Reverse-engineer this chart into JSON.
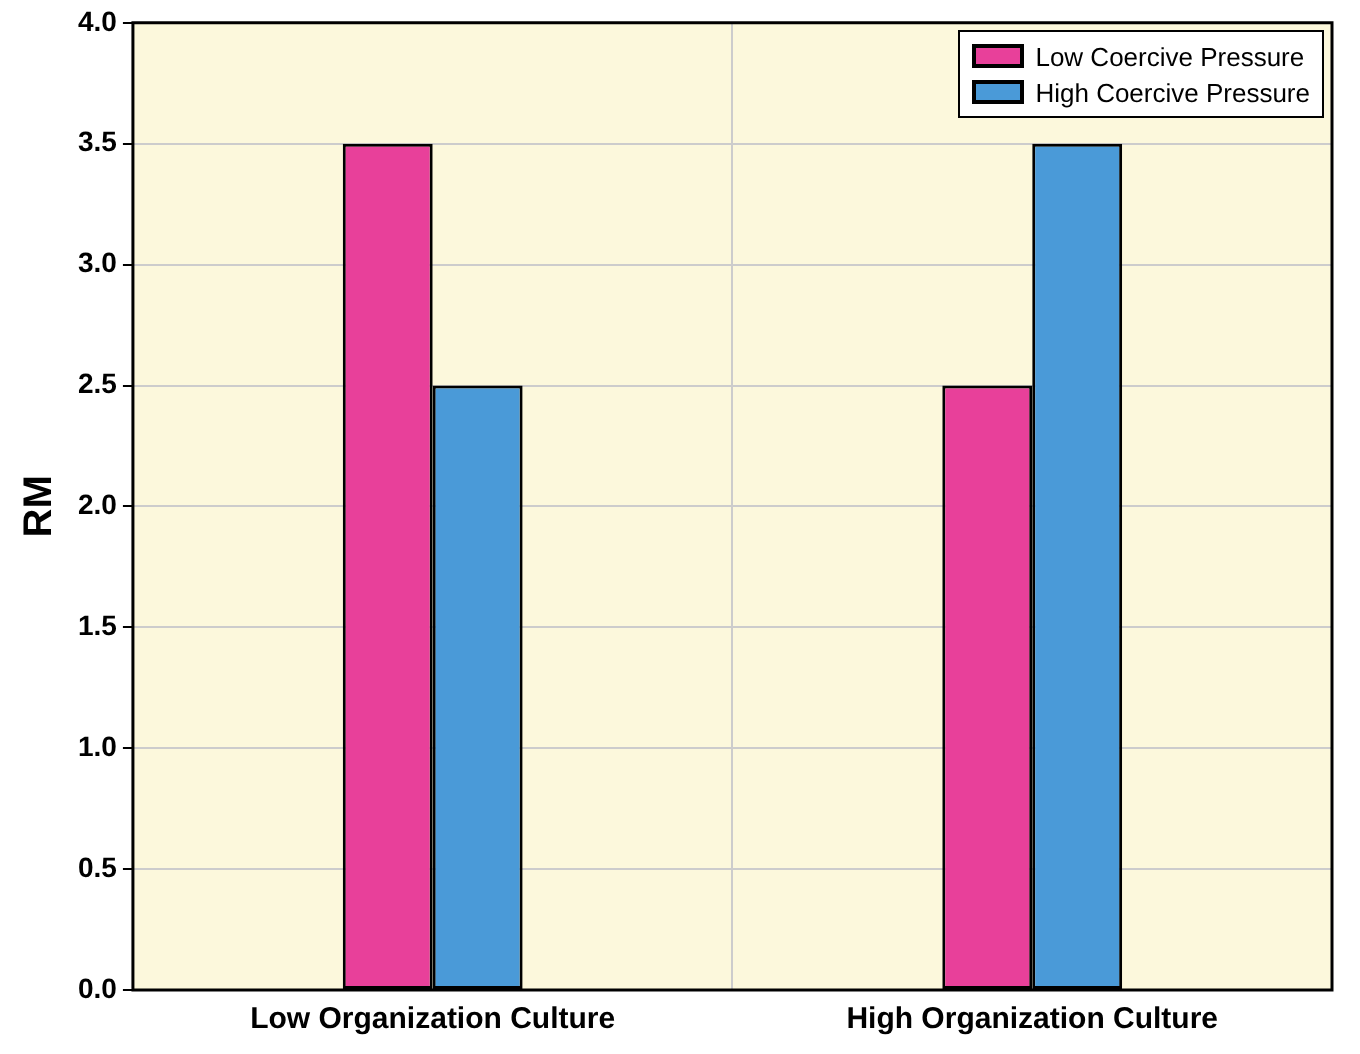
{
  "chart_data": {
    "type": "bar",
    "ylabel": "RM",
    "categories": [
      "Low Organization Culture",
      "High Organization Culture"
    ],
    "series": [
      {
        "name": "Low Coercive Pressure",
        "color": "#e8409a",
        "values": [
          3.5,
          2.5
        ]
      },
      {
        "name": "High Coercive Pressure",
        "color": "#4a9ad8",
        "values": [
          2.5,
          3.5
        ]
      }
    ],
    "ylim": [
      0,
      4
    ],
    "yticks": [
      {
        "value": 0,
        "label": "0.0"
      },
      {
        "value": 0.5,
        "label": "0.5"
      },
      {
        "value": 1,
        "label": "1.0"
      },
      {
        "value": 1.5,
        "label": "1.5"
      },
      {
        "value": 2,
        "label": "2.0"
      },
      {
        "value": 2.5,
        "label": "2.5"
      },
      {
        "value": 3,
        "label": "3.0"
      },
      {
        "value": 3.5,
        "label": "3.5"
      },
      {
        "value": 4,
        "label": "4.0"
      }
    ],
    "grid": true,
    "legend": "top right"
  }
}
